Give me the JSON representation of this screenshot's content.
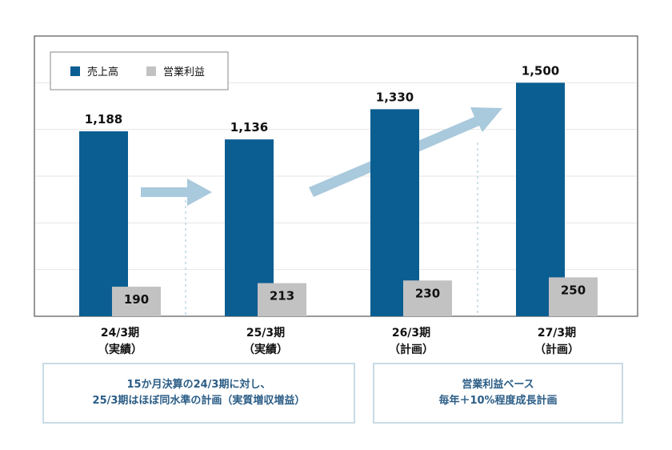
{
  "chart_data": {
    "type": "bar",
    "categories": [
      {
        "line1": "24/3期",
        "line2": "（実績）"
      },
      {
        "line1": "25/3期",
        "line2": "（実績）"
      },
      {
        "line1": "26/3期",
        "line2": "（計画）"
      },
      {
        "line1": "27/3期",
        "line2": "（計画）"
      }
    ],
    "series": [
      {
        "name": "売上高",
        "values": [
          1188,
          1136,
          1330,
          1500
        ],
        "labels": [
          "1,188",
          "1,136",
          "1,330",
          "1,500"
        ],
        "color": "#0b5e92"
      },
      {
        "name": "営業利益",
        "values": [
          190,
          213,
          230,
          250
        ],
        "labels": [
          "190",
          "213",
          "230",
          "250"
        ],
        "color": "#c2c2c2"
      }
    ],
    "ylim": [
      0,
      1800
    ],
    "grid": true,
    "legend": "top-left",
    "arrow_color": "#a9c9dc"
  },
  "notes": [
    {
      "line1": "15か月決算の24/3期に対し、",
      "line2": "25/3期はほぼ同水準の計画（実質増収増益）"
    },
    {
      "line1": "営業利益ベース",
      "line2": "毎年＋10%程度成長計画"
    }
  ]
}
